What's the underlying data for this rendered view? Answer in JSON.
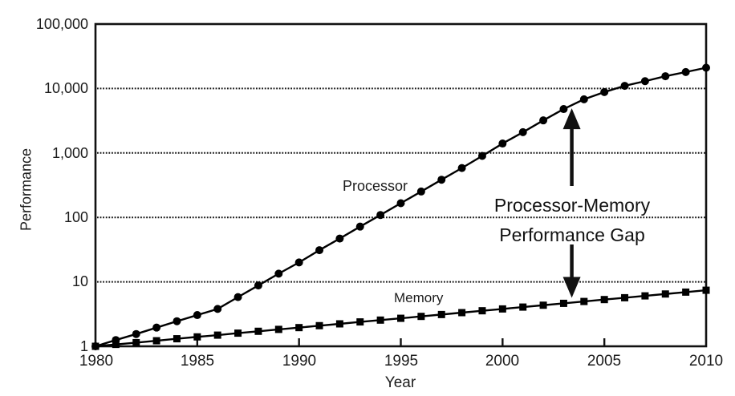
{
  "chart_data": {
    "type": "line",
    "title": "",
    "xlabel": "Year",
    "ylabel": "Performance",
    "x_scale": "linear",
    "y_scale": "log",
    "xlim": [
      1980,
      2010
    ],
    "ylim": [
      1,
      100000
    ],
    "grid": "horizontal dotted lines at powers of 10",
    "legend_position": "inline labels next to lines",
    "x_ticks": [
      "1980",
      "1985",
      "1990",
      "1995",
      "2000",
      "2005",
      "2010"
    ],
    "y_ticks": [
      "1",
      "10",
      "100",
      "1,000",
      "10,000",
      "100,000"
    ],
    "x": [
      1980,
      1981,
      1982,
      1983,
      1984,
      1985,
      1986,
      1987,
      1988,
      1989,
      1990,
      1991,
      1992,
      1993,
      1994,
      1995,
      1996,
      1997,
      1998,
      1999,
      2000,
      2001,
      2002,
      2003,
      2004,
      2005,
      2006,
      2007,
      2008,
      2009,
      2010
    ],
    "series": [
      {
        "name": "Processor",
        "marker": "circle",
        "color": "#000000",
        "values": [
          1,
          1.25,
          1.55,
          1.95,
          2.45,
          3.05,
          3.8,
          5.8,
          8.8,
          13.4,
          20,
          31,
          47,
          72,
          109,
          166,
          252,
          384,
          583,
          900,
          1400,
          2100,
          3200,
          4800,
          6800,
          8800,
          11000,
          13000,
          15500,
          18000,
          21000
        ]
      },
      {
        "name": "Memory",
        "marker": "square",
        "color": "#000000",
        "values": [
          1,
          1.07,
          1.14,
          1.22,
          1.31,
          1.4,
          1.49,
          1.6,
          1.71,
          1.83,
          1.95,
          2.09,
          2.23,
          2.39,
          2.55,
          2.72,
          2.91,
          3.11,
          3.33,
          3.56,
          3.8,
          4.06,
          4.34,
          4.64,
          4.96,
          5.31,
          5.67,
          6.06,
          6.48,
          6.93,
          7.41
        ]
      }
    ],
    "annotation": {
      "line1": "Processor-Memory",
      "line2": "Performance Gap",
      "arrow_year": 2003.4
    }
  }
}
